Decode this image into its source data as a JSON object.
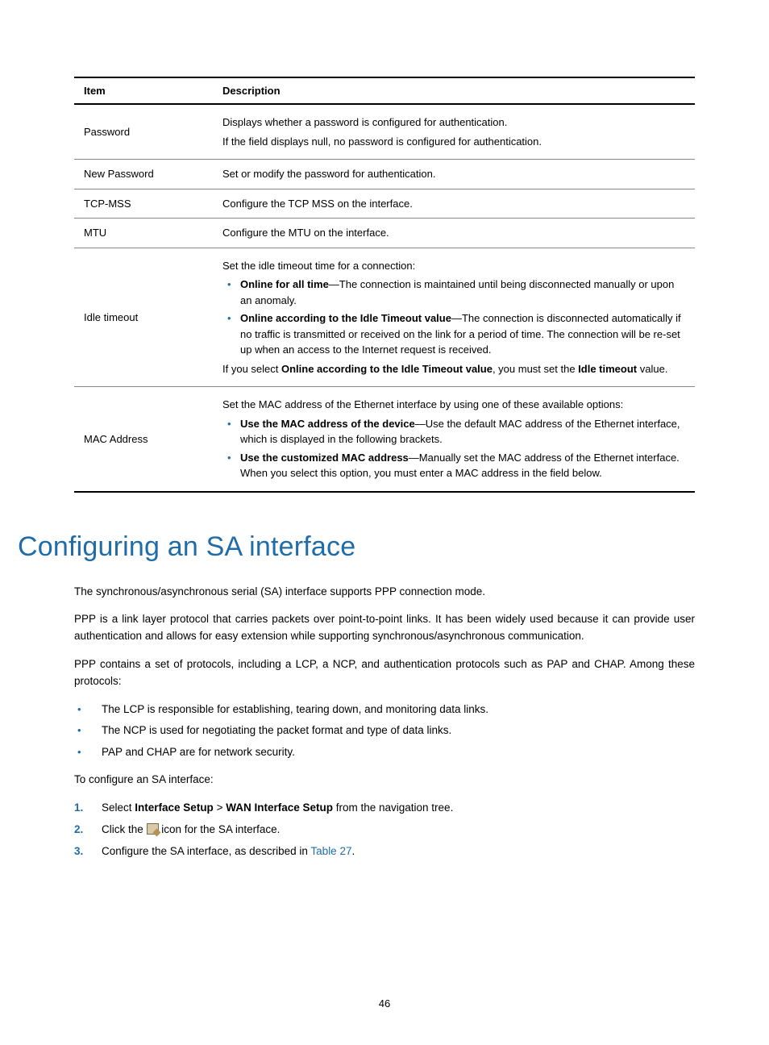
{
  "colors": {
    "accent": "#1f6ca8",
    "text": "#000000",
    "table_border_heavy": "#000000",
    "table_border_light": "#888888",
    "background": "#ffffff"
  },
  "typography": {
    "heading_fontsize": 34,
    "body_fontsize": 13.5,
    "table_fontsize": 13,
    "font_family": "Arial, Helvetica, sans-serif"
  },
  "table": {
    "headers": {
      "item": "Item",
      "description": "Description"
    },
    "rows": [
      {
        "item": "Password",
        "desc_lines": [
          "Displays whether a password is configured for authentication.",
          "If the field displays null, no password is configured for authentication."
        ]
      },
      {
        "item": "New Password",
        "desc_lines": [
          "Set or modify the password for authentication."
        ]
      },
      {
        "item": "TCP-MSS",
        "desc_lines": [
          "Configure the TCP MSS on the interface."
        ]
      },
      {
        "item": "MTU",
        "desc_lines": [
          "Configure the MTU on the interface."
        ]
      },
      {
        "item": "Idle timeout",
        "intro": "Set the idle timeout time for a connection:",
        "bullets": [
          {
            "bold": "Online for all time",
            "rest": "—The connection is maintained until being disconnected manually or upon an anomaly."
          },
          {
            "bold": "Online according to the Idle Timeout value",
            "rest": "—The connection is disconnected automatically if no traffic is transmitted or received on the link for a period of time. The connection will be re-set up when an access to the Internet request is received."
          }
        ],
        "outro_pre": "If you select ",
        "outro_bold1": "Online according to the Idle Timeout value",
        "outro_mid": ", you must set the ",
        "outro_bold2": "Idle timeout",
        "outro_post": " value."
      },
      {
        "item": "MAC Address",
        "intro": "Set the MAC address of the Ethernet interface by using one of these available options:",
        "bullets": [
          {
            "bold": "Use the MAC address of the device",
            "rest": "—Use the default MAC address of the Ethernet interface, which is displayed in the following brackets."
          },
          {
            "bold": "Use the customized MAC address",
            "rest": "—Manually set the MAC address of the Ethernet interface. When you select this option, you must enter a MAC address in the field below."
          }
        ]
      }
    ]
  },
  "heading": "Configuring an SA interface",
  "paragraphs": {
    "p1": "The synchronous/asynchronous serial (SA) interface supports PPP connection mode.",
    "p2": "PPP is a link layer protocol that carries packets over point-to-point links. It has been widely used because it can provide user authentication and allows for easy extension while supporting synchronous/asynchronous communication.",
    "p3": "PPP contains a set of protocols, including a LCP, a NCP, and authentication protocols such as PAP and CHAP. Among these protocols:"
  },
  "body_bullets": [
    "The LCP is responsible for establishing, tearing down, and monitoring data links.",
    "The NCP is used for negotiating the packet format and type of data links.",
    "PAP and CHAP are for network security."
  ],
  "configure_intro": "To configure an SA interface:",
  "steps": {
    "s1_pre": "Select ",
    "s1_b1": "Interface Setup",
    "s1_mid": " > ",
    "s1_b2": "WAN Interface Setup",
    "s1_post": " from the navigation tree.",
    "s2_pre": "Click the ",
    "s2_post": " icon for the SA interface.",
    "s3_pre": "Configure the SA interface, as described in ",
    "s3_link": "Table 27",
    "s3_post": "."
  },
  "page_number": "46"
}
